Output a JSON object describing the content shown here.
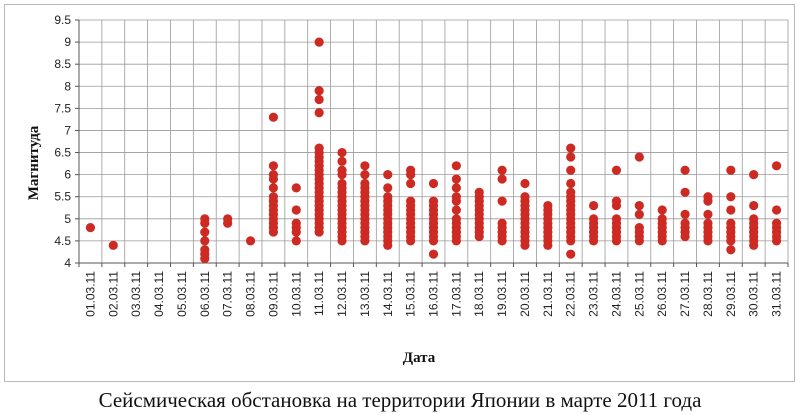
{
  "caption": "Сейсмическая обстановка на территории Японии в марте 2011 года",
  "chart_data": {
    "type": "scatter",
    "xlabel": "Дата",
    "ylabel": "Магнитуда",
    "ylim": [
      4,
      9.5
    ],
    "ystep": 0.5,
    "ytick_labels": [
      "4",
      "4.5",
      "5",
      "5.5",
      "6",
      "6.5",
      "7",
      "7.5",
      "8",
      "8.5",
      "9",
      "9.5"
    ],
    "grid": true,
    "marker_color": "#cc2a22",
    "categories": [
      "01.03.11",
      "02.03.11",
      "03.03.11",
      "04.03.11",
      "05.03.11",
      "06.03.11",
      "07.03.11",
      "08.03.11",
      "09.03.11",
      "10.03.11",
      "11.03.11",
      "12.03.11",
      "13.03.11",
      "14.03.11",
      "15.03.11",
      "16.03.11",
      "17.03.11",
      "18.03.11",
      "19.03.11",
      "20.03.11",
      "21.03.11",
      "22.03.11",
      "23.03.11",
      "24.03.11",
      "25.03.11",
      "26.03.11",
      "27.03.11",
      "28.03.11",
      "29.03.11",
      "30.03.11",
      "31.03.11"
    ],
    "points": [
      [
        0,
        [
          4.8
        ]
      ],
      [
        1,
        [
          4.4
        ]
      ],
      [
        2,
        []
      ],
      [
        3,
        []
      ],
      [
        4,
        []
      ],
      [
        5,
        [
          4.1,
          4.2,
          4.3,
          4.5,
          4.7,
          4.9,
          5.0
        ]
      ],
      [
        6,
        [
          4.9,
          5.0
        ]
      ],
      [
        7,
        [
          4.5
        ]
      ],
      [
        8,
        [
          4.7,
          4.8,
          4.9,
          5.0,
          5.1,
          5.2,
          5.3,
          5.4,
          5.5,
          5.7,
          5.9,
          6.0,
          6.2,
          7.3
        ]
      ],
      [
        9,
        [
          4.5,
          4.7,
          4.8,
          4.9,
          5.2,
          5.7
        ]
      ],
      [
        10,
        [
          4.7,
          4.8,
          4.9,
          5.0,
          5.1,
          5.2,
          5.3,
          5.4,
          5.5,
          5.6,
          5.7,
          5.8,
          5.9,
          6.0,
          6.1,
          6.2,
          6.3,
          6.4,
          6.5,
          6.6,
          7.4,
          7.7,
          7.9,
          9.0
        ]
      ],
      [
        11,
        [
          4.5,
          4.6,
          4.7,
          4.8,
          4.9,
          5.0,
          5.1,
          5.2,
          5.3,
          5.4,
          5.5,
          5.6,
          5.7,
          5.8,
          6.0,
          6.1,
          6.3,
          6.5
        ]
      ],
      [
        12,
        [
          4.5,
          4.6,
          4.7,
          4.8,
          4.9,
          5.0,
          5.1,
          5.2,
          5.3,
          5.4,
          5.5,
          5.6,
          5.7,
          5.8,
          6.0,
          6.2
        ]
      ],
      [
        13,
        [
          4.4,
          4.5,
          4.6,
          4.7,
          4.8,
          4.9,
          5.0,
          5.1,
          5.2,
          5.3,
          5.4,
          5.5,
          5.7,
          6.0
        ]
      ],
      [
        14,
        [
          4.5,
          4.6,
          4.7,
          4.8,
          4.9,
          5.0,
          5.1,
          5.2,
          5.3,
          5.4,
          5.8,
          6.0,
          6.1
        ]
      ],
      [
        15,
        [
          4.2,
          4.5,
          4.6,
          4.7,
          4.8,
          4.9,
          5.0,
          5.1,
          5.2,
          5.3,
          5.4,
          5.8
        ]
      ],
      [
        16,
        [
          4.5,
          4.6,
          4.7,
          4.8,
          4.9,
          5.0,
          5.2,
          5.4,
          5.5,
          5.7,
          5.9,
          6.2
        ]
      ],
      [
        17,
        [
          4.6,
          4.7,
          4.8,
          4.9,
          5.0,
          5.1,
          5.2,
          5.3,
          5.4,
          5.5,
          5.6
        ]
      ],
      [
        18,
        [
          4.5,
          4.6,
          4.7,
          4.8,
          4.9,
          5.4,
          5.9,
          6.1
        ]
      ],
      [
        19,
        [
          4.4,
          4.5,
          4.6,
          4.7,
          4.8,
          4.9,
          5.0,
          5.1,
          5.2,
          5.3,
          5.4,
          5.5,
          5.8
        ]
      ],
      [
        20,
        [
          4.4,
          4.5,
          4.6,
          4.7,
          4.8,
          4.9,
          5.0,
          5.1,
          5.2,
          5.3
        ]
      ],
      [
        21,
        [
          4.2,
          4.5,
          4.6,
          4.7,
          4.8,
          4.9,
          5.0,
          5.1,
          5.2,
          5.3,
          5.4,
          5.5,
          5.6,
          5.8,
          6.1,
          6.4,
          6.6
        ]
      ],
      [
        22,
        [
          4.5,
          4.6,
          4.7,
          4.8,
          4.9,
          5.0,
          5.3
        ]
      ],
      [
        23,
        [
          4.5,
          4.6,
          4.7,
          4.8,
          4.9,
          5.0,
          5.3,
          5.4,
          6.1
        ]
      ],
      [
        24,
        [
          4.5,
          4.6,
          4.7,
          4.8,
          5.1,
          5.3,
          6.4
        ]
      ],
      [
        25,
        [
          4.5,
          4.6,
          4.7,
          4.8,
          4.9,
          5.0,
          5.2
        ]
      ],
      [
        26,
        [
          4.6,
          4.7,
          4.8,
          4.9,
          5.1,
          5.6,
          6.1
        ]
      ],
      [
        27,
        [
          4.5,
          4.6,
          4.7,
          4.8,
          4.9,
          5.1,
          5.4,
          5.5
        ]
      ],
      [
        28,
        [
          4.3,
          4.5,
          4.6,
          4.7,
          4.8,
          4.9,
          5.2,
          5.5,
          6.1
        ]
      ],
      [
        29,
        [
          4.4,
          4.5,
          4.6,
          4.7,
          4.8,
          4.9,
          5.0,
          5.3,
          6.0
        ]
      ],
      [
        30,
        [
          4.5,
          4.6,
          4.7,
          4.8,
          4.9,
          5.2,
          6.2
        ]
      ]
    ]
  }
}
